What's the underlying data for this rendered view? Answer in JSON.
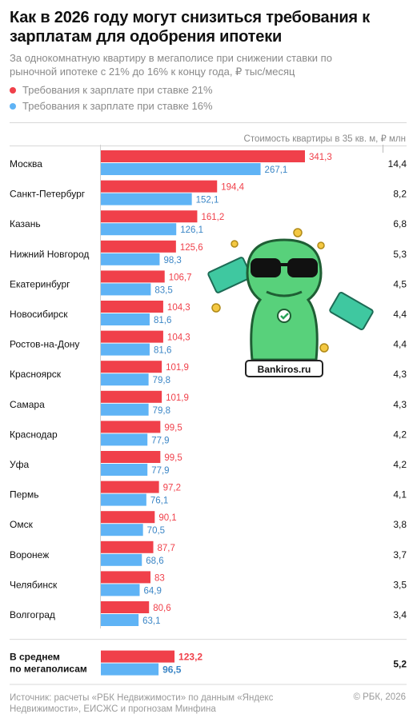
{
  "title": "Как в 2026 году могут снизиться требования к зарплатам для одобрения ипотеки",
  "subtitle": "За однокомнатную квартиру в мегаполисе при снижении ставки по рыночной ипотеке с 21% до 16% к концу года, ₽ тыс/месяц",
  "legend": [
    {
      "label": "Требования к зарплате при ставке 21%",
      "color": "#f0404a"
    },
    {
      "label": "Требования к зарплате при ставке 16%",
      "color": "#5fb3f5"
    }
  ],
  "price_column_header": "Стоимость квартиры в 35 кв. м, ₽ млн",
  "watermark": "Bankiros.ru",
  "footer": {
    "source": "Источник: расчеты «РБК Недвижимости» по данным «Яндекс Недвижимости», ЕИСЖС и прогнозам Минфина",
    "copyright": "© РБК, 2026"
  },
  "chart_data": {
    "type": "bar",
    "orientation": "horizontal",
    "categories": [
      "Москва",
      "Санкт-Петербург",
      "Казань",
      "Нижний Новгород",
      "Екатеринбург",
      "Новосибирск",
      "Ростов-на-Дону",
      "Красноярск",
      "Самара",
      "Краснодар",
      "Уфа",
      "Пермь",
      "Омск",
      "Воронеж",
      "Челябинск",
      "Волгоград"
    ],
    "series": [
      {
        "name": "Требования к зарплате при ставке 21%",
        "color": "#f0404a",
        "values": [
          341.3,
          194.4,
          161.2,
          125.6,
          106.7,
          104.3,
          104.3,
          101.9,
          101.9,
          99.5,
          99.5,
          97.2,
          90.1,
          87.7,
          83,
          80.6
        ],
        "labels": [
          "341,3",
          "194,4",
          "161,2",
          "125,6",
          "106,7",
          "104,3",
          "104,3",
          "101,9",
          "101,9",
          "99,5",
          "99,5",
          "97,2",
          "90,1",
          "87,7",
          "83",
          "80,6"
        ]
      },
      {
        "name": "Требования к зарплате при ставке 16%",
        "color": "#5fb3f5",
        "values": [
          267.1,
          152.1,
          126.1,
          98.3,
          83.5,
          81.6,
          81.6,
          79.8,
          79.8,
          77.9,
          77.9,
          76.1,
          70.5,
          68.6,
          64.9,
          63.1
        ],
        "labels": [
          "267,1",
          "152,1",
          "126,1",
          "98,3",
          "83,5",
          "81,6",
          "81,6",
          "79,8",
          "79,8",
          "77,9",
          "77,9",
          "76,1",
          "70,5",
          "68,6",
          "64,9",
          "63,1"
        ]
      }
    ],
    "price_labels": [
      "14,4",
      "8,2",
      "6,8",
      "5,3",
      "4,5",
      "4,4",
      "4,4",
      "4,3",
      "4,3",
      "4,2",
      "4,2",
      "4,1",
      "3,8",
      "3,7",
      "3,5",
      "3,4"
    ],
    "average": {
      "label_line1": "В среднем",
      "label_line2": "по мегаполисам",
      "values": [
        123.2,
        96.5
      ],
      "labels": [
        "123,2",
        "96,5"
      ],
      "price_label": "5,2"
    },
    "xlim": [
      0,
      341.3
    ],
    "grid": false,
    "legend_position": "top-left"
  }
}
